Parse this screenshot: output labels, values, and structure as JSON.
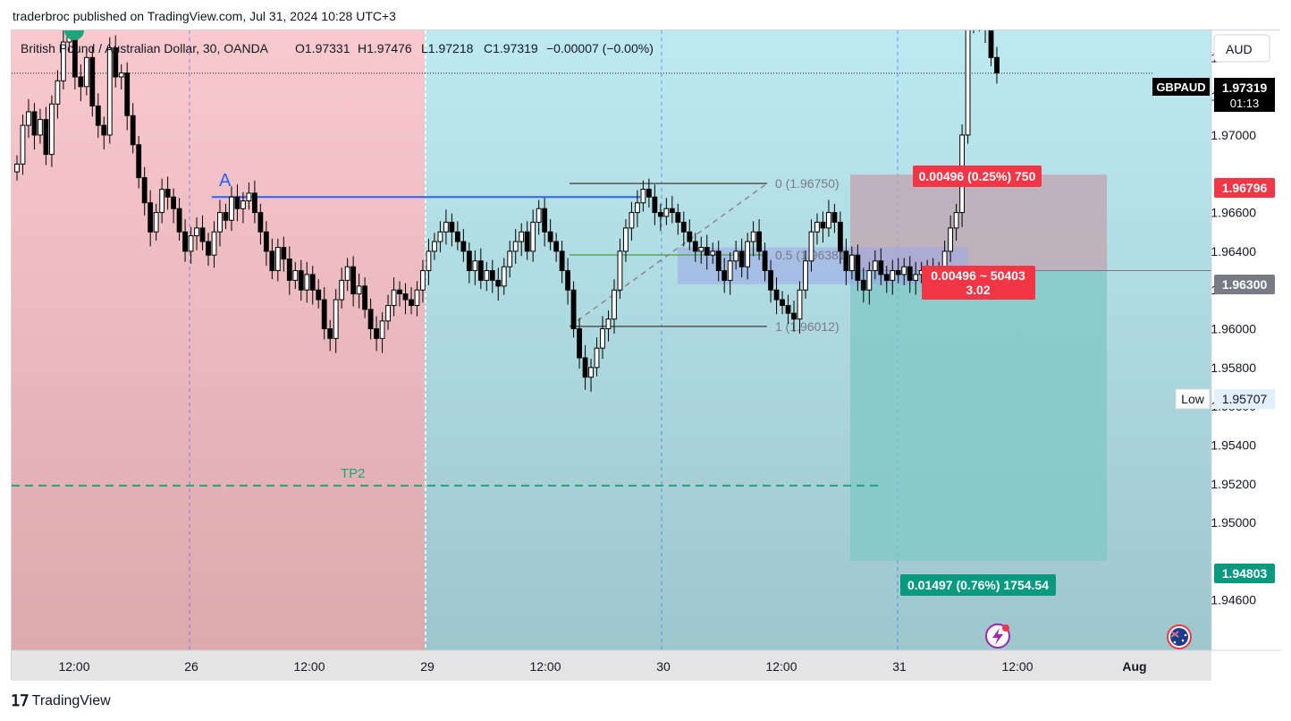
{
  "header": {
    "text": "traderbroc published on TradingView.com, Jul 31, 2024 10:28 UTC+3"
  },
  "legend": {
    "symbol": "British Pound / Australian Dollar, 30, OANDA",
    "open": "O1.97331",
    "high": "H1.97476",
    "low": "L1.97218",
    "close": "C1.97319",
    "change": "−0.00007 (−0.00%)"
  },
  "currency_button": "AUD",
  "price_tag": {
    "symbol": "GBPAUD",
    "price": "1.97319",
    "countdown": "01:13"
  },
  "low_tag": {
    "label": "Low",
    "price": "1.95707"
  },
  "level_tags": {
    "stop": "1.96796",
    "entry": "1.96300",
    "target": "1.94803"
  },
  "position": {
    "stop_label": "0.00496 (0.25%) 750",
    "entry_label_1": "0.00496 ~ 50403",
    "entry_label_2": "3.02",
    "target_label": "0.01497 (0.76%) 1754.54"
  },
  "fib": {
    "level0": "0 (1.96750)",
    "level05": "0.5 (1.96381)",
    "level1": "1 (1.96012)"
  },
  "annotations": {
    "a": "A",
    "tp2": "TP2"
  },
  "footer": {
    "brand": "TradingView"
  },
  "colors": {
    "bear_session": "#f8c9cd",
    "bull_session": "#b9e8ee",
    "stop_zone": "#c2a3ae",
    "target_zone": "#7ec8c4",
    "red_tag": "#f23645",
    "green_tag": "#089981",
    "candle": "#000000",
    "line_a": "#2962ff",
    "tp2": "#22a47a"
  },
  "chart_data": {
    "type": "candlestick",
    "title": "British Pound / Australian Dollar, 30, OANDA",
    "ylim": [
      1.9434,
      1.9754
    ],
    "y_ticks": [
      "1.97400",
      "1.97200",
      "1.97000",
      "1.96600",
      "1.96400",
      "1.96200",
      "1.96000",
      "1.95800",
      "1.95600",
      "1.95400",
      "1.95200",
      "1.95000",
      "1.94600"
    ],
    "x_ticks": [
      "12:00",
      "26",
      "12:00",
      "29",
      "12:00",
      "30",
      "12:00",
      "31",
      "12:00",
      "Aug"
    ],
    "levels": {
      "last_price": 1.97319,
      "stop": 1.96796,
      "entry": 1.963,
      "target": 1.94803,
      "line_a": 1.9668,
      "tp2": 1.9519,
      "fib_0": 1.9675,
      "fib_05": 1.96381,
      "fib_1": 1.96012
    },
    "closes": [
      1.9685,
      1.9705,
      1.9712,
      1.97,
      1.9708,
      1.969,
      1.9716,
      1.9728,
      1.9748,
      1.976,
      1.973,
      1.9725,
      1.974,
      1.9715,
      1.9705,
      1.97,
      1.9745,
      1.973,
      1.9732,
      1.971,
      1.9695,
      1.9678,
      1.9665,
      1.965,
      1.966,
      1.9672,
      1.9668,
      1.9662,
      1.965,
      1.964,
      1.9648,
      1.9652,
      1.9645,
      1.9638,
      1.965,
      1.966,
      1.9656,
      1.9668,
      1.9662,
      1.9666,
      1.967,
      1.966,
      1.965,
      1.964,
      1.963,
      1.9642,
      1.9636,
      1.9625,
      1.963,
      1.962,
      1.9628,
      1.962,
      1.9615,
      1.96,
      1.9595,
      1.9615,
      1.9625,
      1.9632,
      1.9618,
      1.9622,
      1.961,
      1.96,
      1.9595,
      1.9604,
      1.9612,
      1.962,
      1.9618,
      1.9615,
      1.9612,
      1.962,
      1.963,
      1.964,
      1.9645,
      1.965,
      1.9655,
      1.965,
      1.9645,
      1.964,
      1.963,
      1.9635,
      1.9625,
      1.963,
      1.9625,
      1.9622,
      1.9632,
      1.964,
      1.9645,
      1.965,
      1.964,
      1.9655,
      1.9662,
      1.965,
      1.9645,
      1.964,
      1.963,
      1.962,
      1.96,
      1.9585,
      1.9575,
      1.958,
      1.959,
      1.96,
      1.9605,
      1.962,
      1.964,
      1.9652,
      1.966,
      1.9665,
      1.9672,
      1.9668,
      1.966,
      1.9658,
      1.9662,
      1.966,
      1.9655,
      1.965,
      1.9645,
      1.964,
      1.9642,
      1.9638,
      1.964,
      1.963,
      1.9625,
      1.9635,
      1.964,
      1.9632,
      1.9645,
      1.965,
      1.964,
      1.963,
      1.962,
      1.9615,
      1.9612,
      1.9608,
      1.9605,
      1.962,
      1.9635,
      1.965,
      1.9655,
      1.9652,
      1.966,
      1.9655,
      1.964,
      1.963,
      1.9638,
      1.9625,
      1.962,
      1.963,
      1.9635,
      1.9628,
      1.9625,
      1.963,
      1.9628,
      1.9632,
      1.9625,
      1.9628,
      1.963,
      1.9626,
      1.963,
      1.963,
      1.964,
      1.9652,
      1.966,
      1.97,
      1.9758,
      1.977,
      1.976,
      1.9755,
      1.974,
      1.9732
    ]
  }
}
